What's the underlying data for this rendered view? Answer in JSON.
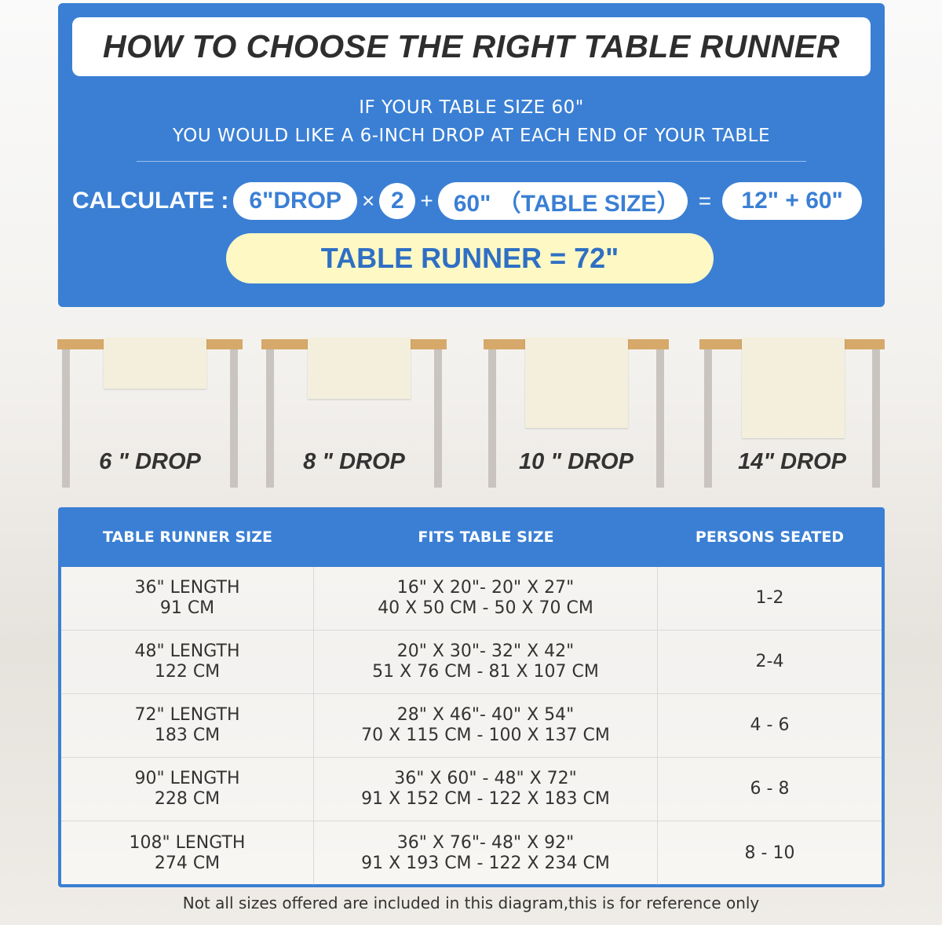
{
  "title": "HOW TO CHOOSE THE RIGHT TABLE RUNNER",
  "subtitle": [
    "IF YOUR TABLE SIZE 60\"",
    "YOU WOULD LIKE A 6-INCH DROP AT EACH END OF YOUR TABLE"
  ],
  "calc": {
    "label": "CALCULATE :",
    "drop": "6\"DROP",
    "times": "×",
    "multiplier": "2",
    "plus": "+",
    "table": "60\" （TABLE SIZE）",
    "equals": "=",
    "sum": "12\" + 60\"",
    "result": "TABLE RUNNER = 72\""
  },
  "drops": [
    {
      "label": "6 \" DROP"
    },
    {
      "label": "8 \" DROP"
    },
    {
      "label": "10 \" DROP"
    },
    {
      "label": "14\" DROP"
    }
  ],
  "table": {
    "headers": [
      "TABLE RUNNER SIZE",
      "FITS TABLE SIZE",
      "PERSONS SEATED"
    ],
    "rows": [
      {
        "size": [
          "36\" LENGTH",
          "91 CM"
        ],
        "fits": [
          "16\" X 20\"- 20\" X 27\"",
          "40 X 50 CM - 50 X 70 CM"
        ],
        "persons": "1-2"
      },
      {
        "size": [
          "48\" LENGTH",
          "122 CM"
        ],
        "fits": [
          "20\" X 30\"- 32\" X 42\"",
          "51 X 76 CM - 81 X 107 CM"
        ],
        "persons": "2-4"
      },
      {
        "size": [
          "72\" LENGTH",
          "183 CM"
        ],
        "fits": [
          "28\" X 46\"- 40\" X 54\"",
          "70 X 115 CM - 100 X 137 CM"
        ],
        "persons": "4 - 6"
      },
      {
        "size": [
          "90\" LENGTH",
          "228 CM"
        ],
        "fits": [
          "36\" X 60\" - 48\" X 72\"",
          "91 X 152 CM - 122 X 183 CM"
        ],
        "persons": "6 - 8"
      },
      {
        "size": [
          "108\" LENGTH",
          "274 CM"
        ],
        "fits": [
          "36\" X 76\"- 48\" X 92\"",
          "91 X 193 CM - 122 X 234 CM"
        ],
        "persons": "8 - 10"
      }
    ]
  },
  "footer": "Not all sizes offered are included in this diagram,this is for reference only",
  "colors": {
    "accent": "#3a7fd4",
    "result_bg": "#fdf8c4",
    "table_top": "#d6a96a",
    "leg": "#c9c4bf"
  }
}
